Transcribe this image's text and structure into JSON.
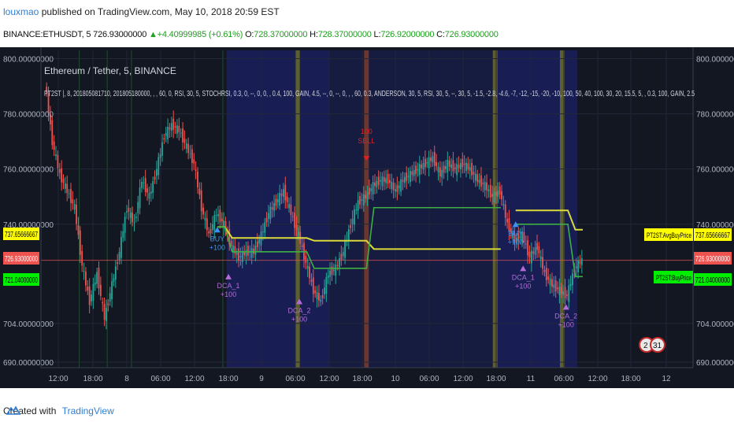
{
  "header": {
    "author": "louxmao",
    "published": "published on TradingView.com, May 10, 2018 20:59 EST",
    "symbol": "BINANCE:ETHUSDT, 5",
    "last": "726.93000000",
    "arrow": "▲",
    "change": "+4.40999985 (+0.61%)",
    "o_label": "O:",
    "o_val": "728.37000000",
    "h_label": "H:",
    "h_val": "728.37000000",
    "l_label": "L:",
    "l_val": "726.92000000",
    "c_label": "C:",
    "c_val": "726.93000000"
  },
  "chart": {
    "title": "Ethereum / Tether, 5, BINANCE",
    "indicator": "PT2ST |, 8, 201805081710, 201805180000, , , 60, 0, RSI, 30, 5, STOCHRSI, 0.3, 0, --, 0, 0, , 0.4, 100, GAIN, 4.5, --, 0, --, 0, , , 60, 0.3, ANDERSON, 30, 5, RSI, 30, 5, --, 30, 5, -1.5, -2.8, -4.6, -7, -12, -15, -20, -10, 100, 50, 40, 100, 30, 20, 15.5, 5, , 0.3, 100, GAIN, 2.5",
    "avg_label": "PT2ST:AvgBuyPrice",
    "buy_label": "PT2ST:BuyPrice",
    "avg_value": "737.65666667",
    "price_value": "726.93000000",
    "buy_value": "721.04000000",
    "counter_a": "2",
    "counter_b": "31"
  },
  "chart_data": {
    "type": "line",
    "symbol": "ETHUSDT",
    "y_ticks": [
      "800.00000000",
      "780.00000000",
      "760.00000000",
      "740.00000000",
      "704.00000000",
      "690.00000000"
    ],
    "ylim": [
      688,
      803
    ],
    "x_ticks": [
      "12:00",
      "18:00",
      "8",
      "06:00",
      "12:00",
      "18:00",
      "9",
      "06:00",
      "12:00",
      "18:00",
      "10",
      "06:00",
      "12:00",
      "18:00",
      "11",
      "06:00",
      "12:00",
      "18:00",
      "12"
    ],
    "x": [
      0,
      4,
      8,
      12,
      16,
      20,
      24,
      28,
      32,
      36,
      40,
      44,
      48,
      52,
      56,
      60,
      64,
      68,
      72,
      76,
      80,
      84,
      88,
      92,
      96,
      100,
      104,
      108,
      112,
      116,
      120,
      124,
      128,
      132,
      136,
      140,
      144,
      148,
      152,
      156,
      160,
      164,
      168,
      172,
      176,
      180,
      184,
      188,
      192,
      196,
      200,
      204,
      208,
      212,
      216,
      220,
      224,
      228,
      232,
      236,
      240,
      244,
      248,
      252,
      256,
      260,
      264,
      268,
      272,
      276,
      280,
      284,
      288
    ],
    "series": [
      {
        "values": [
          792,
          770,
          758,
          752,
          746,
          725,
          712,
          722,
          706,
          718,
          730,
          746,
          740,
          756,
          750,
          760,
          772,
          776,
          774,
          768,
          762,
          746,
          736,
          744,
          740,
          732,
          728,
          730,
          730,
          736,
          744,
          748,
          752,
          744,
          736,
          726,
          716,
          712,
          722,
          724,
          730,
          740,
          748,
          750,
          754,
          756,
          756,
          752,
          756,
          758,
          760,
          762,
          764,
          758,
          762,
          760,
          762,
          760,
          756,
          754,
          750,
          752,
          740,
          734,
          736,
          728,
          732,
          722,
          718,
          716,
          714,
          724,
          727
        ]
      },
      {
        "name": "PT2ST:AvgBuyPrice",
        "values": [
          null,
          null,
          null,
          null,
          null,
          null,
          null,
          null,
          null,
          null,
          null,
          null,
          null,
          null,
          null,
          null,
          null,
          null,
          null,
          null,
          null,
          null,
          null,
          739,
          739,
          735,
          735,
          735,
          735,
          735,
          735,
          735,
          735,
          735,
          735,
          735,
          734,
          734,
          734,
          734,
          734,
          734,
          734,
          734,
          731,
          731,
          731,
          731,
          731,
          731,
          731,
          731,
          731,
          731,
          731,
          731,
          731,
          731,
          731,
          731,
          731,
          731,
          null,
          745,
          745,
          745,
          745,
          745,
          745,
          745,
          745,
          738,
          738
        ]
      },
      {
        "name": "PT2ST:BuyPrice",
        "values": [
          null,
          null,
          null,
          null,
          null,
          null,
          null,
          null,
          null,
          null,
          null,
          null,
          null,
          null,
          null,
          null,
          null,
          null,
          null,
          null,
          null,
          null,
          null,
          739,
          739,
          730,
          730,
          730,
          730,
          730,
          730,
          730,
          730,
          730,
          730,
          730,
          724,
          724,
          724,
          724,
          724,
          724,
          724,
          724,
          746,
          746,
          746,
          746,
          746,
          746,
          746,
          746,
          746,
          746,
          746,
          746,
          746,
          746,
          746,
          746,
          746,
          746,
          null,
          740,
          740,
          740,
          740,
          740,
          740,
          740,
          740,
          721,
          721
        ]
      }
    ],
    "markers": [
      {
        "label": "BUY",
        "value": "+100"
      },
      {
        "label": "DCA_1",
        "value": "+100"
      },
      {
        "label": "DCA_2",
        "value": "+100"
      },
      {
        "label": "SELL",
        "value": "100"
      },
      {
        "label": "BUY",
        "value": "+100"
      },
      {
        "label": "DCA_1",
        "value": "+100"
      },
      {
        "label": "DCA_2",
        "value": "+100"
      }
    ],
    "grid": true,
    "colors": {
      "background": "#131722",
      "up": "#26a69a",
      "down": "#ef5350",
      "avg_line": "#d9d93a",
      "buy_line": "#3cb043",
      "marker": "#b46bd6",
      "buy_marker": "#3d8ff0",
      "sell_marker": "#e02020",
      "highlight": "#1a1f5a"
    }
  },
  "footer": {
    "created": "Created with",
    "brand": "TradingView"
  }
}
